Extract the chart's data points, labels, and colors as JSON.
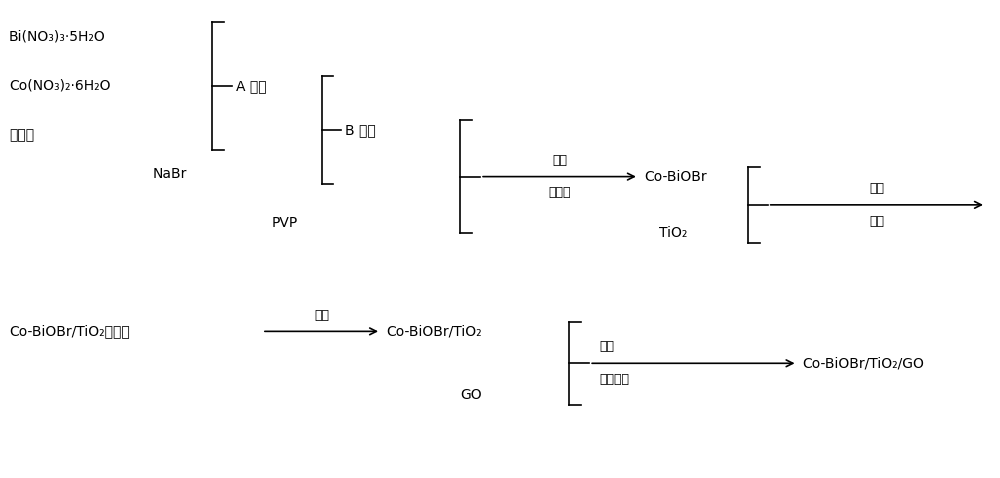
{
  "bg_color": "#ffffff",
  "text_color": "#000000",
  "figsize": [
    10.0,
    4.78
  ],
  "dpi": 100,
  "row1": {
    "group1_items": [
      "Bi(NO₃)₃·5H₂O",
      "Co(NO₃)₂·6H₂O",
      "乙二醇"
    ],
    "label_A": "A 溶液",
    "label_NaBr": "NaBr",
    "label_B": "B 溶液",
    "label_PVP": "PVP",
    "label_ultrasonic1": "超声",
    "label_reactor": "反应鼼",
    "product1": "Co-BiOBr",
    "label_TiO2": "TiO₂",
    "label_ultrasonic2": "超声",
    "label_dry": "干燥"
  },
  "row2": {
    "precursor": "Co-BiOBr/TiO₂前驱体",
    "label_calcine": "锻烧",
    "product2": "Co-BiOBr/TiO₂",
    "label_GO": "GO",
    "label_ultrasonic3": "超声",
    "label_heat": "加热搧拌",
    "final_product": "Co-BiOBr/TiO₂/GO"
  }
}
